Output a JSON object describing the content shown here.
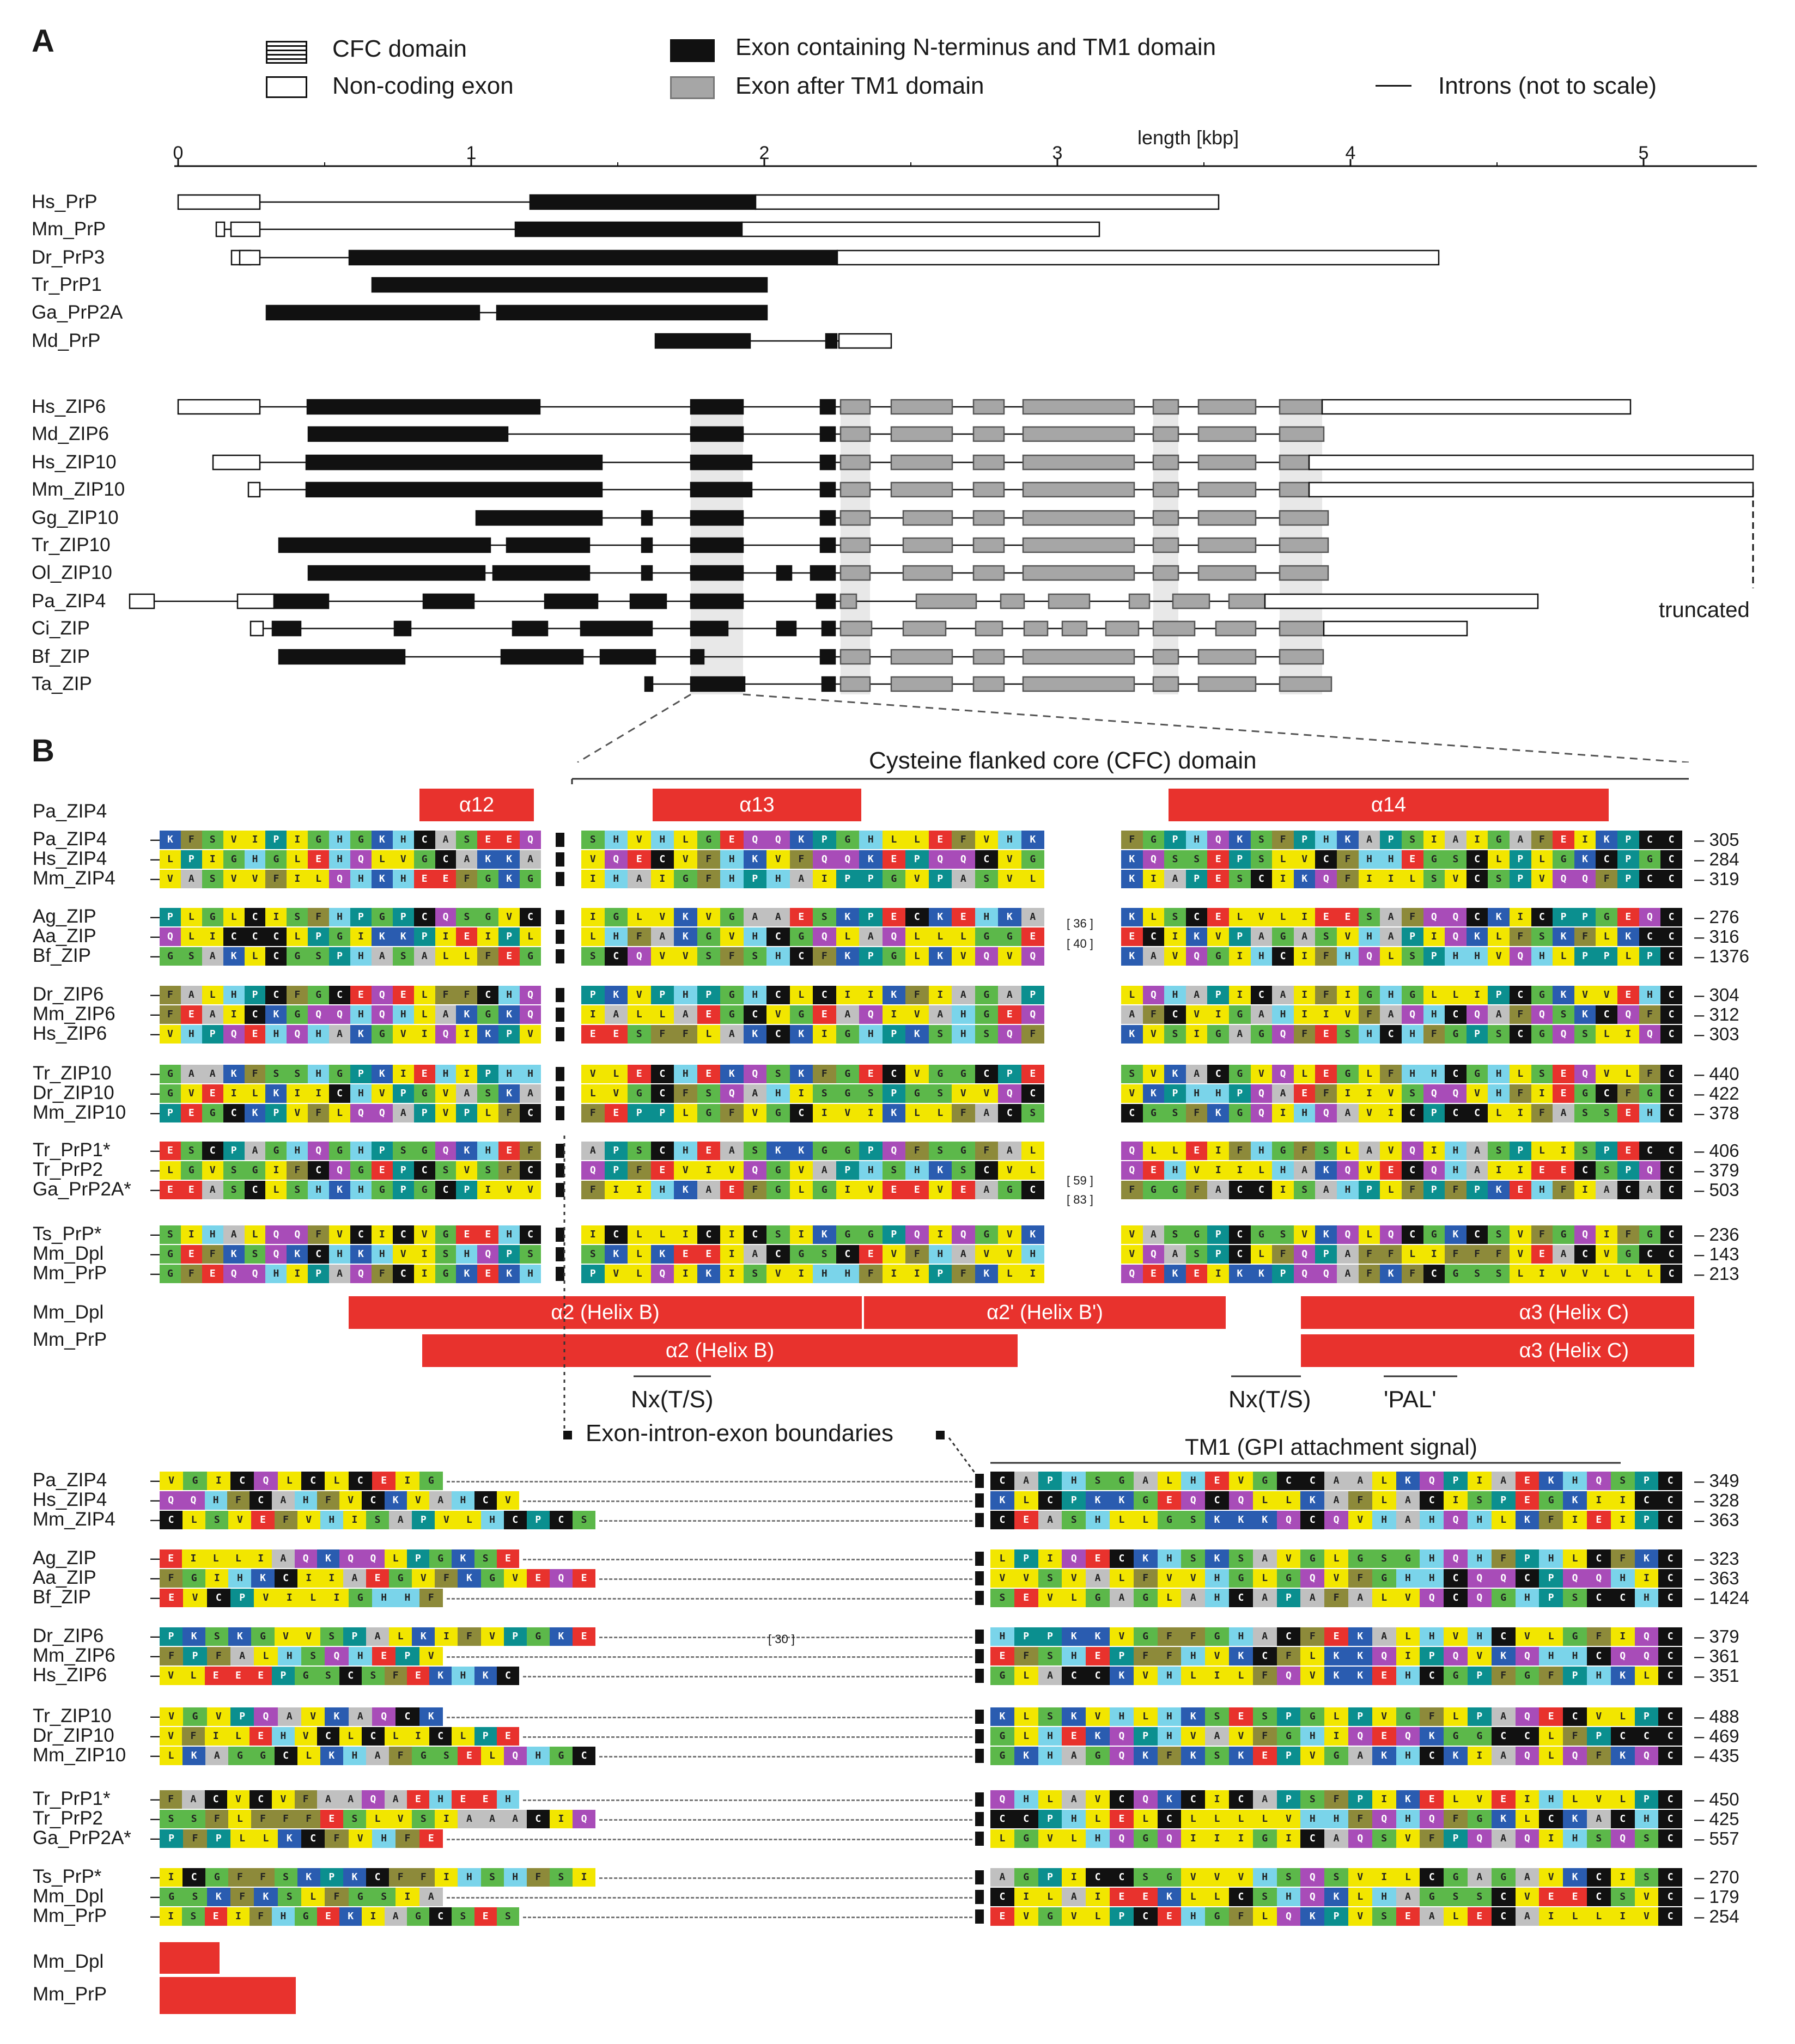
{
  "panelA": {
    "letter": "A",
    "legend": {
      "cfc": "CFC domain",
      "noncoding": "Non-coding exon",
      "exon_tm1": "Exon containing N-terminus and TM1 domain",
      "exon_after": "Exon after TM1 domain",
      "introns": "Introns (not to scale)"
    },
    "axis_label": "length [kbp]",
    "ticks": [
      "0",
      "1",
      "2",
      "3",
      "4",
      "5"
    ],
    "prp_species": [
      "Hs_PrP",
      "Mm_PrP",
      "Dr_PrP3",
      "Tr_PrP1",
      "Ga_PrP2A",
      "Md_PrP"
    ],
    "zip_species": [
      "Hs_ZIP6",
      "Md_ZIP6",
      "Hs_ZIP10",
      "Mm_ZIP10",
      "Gg_ZIP10",
      "Tr_ZIP10",
      "Ol_ZIP10",
      "Pa_ZIP4",
      "Ci_ZIP",
      "Bf_ZIP",
      "Ta_ZIP"
    ],
    "truncated": "truncated"
  },
  "panelB": {
    "letter": "B",
    "cfc_label": "Cysteine flanked core (CFC) domain",
    "helices_top": [
      "α12",
      "α13",
      "α14"
    ],
    "top_label": "Pa_ZIP4",
    "groups1": [
      [
        {
          "name": "Pa_ZIP4",
          "end": "305"
        },
        {
          "name": "Hs_ZIP4",
          "end": "284"
        },
        {
          "name": "Mm_ZIP4",
          "end": "319"
        }
      ],
      [
        {
          "name": "Ag_ZIP",
          "end": "276"
        },
        {
          "name": "Aa_ZIP",
          "end": "316"
        },
        {
          "name": "Bf_ZIP",
          "end": "1376"
        }
      ],
      [
        {
          "name": "Dr_ZIP6",
          "end": "304"
        },
        {
          "name": "Mm_ZIP6",
          "end": "312"
        },
        {
          "name": "Hs_ZIP6",
          "end": "303"
        }
      ],
      [
        {
          "name": "Tr_ZIP10",
          "end": "440"
        },
        {
          "name": "Dr_ZIP10",
          "end": "422"
        },
        {
          "name": "Mm_ZIP10",
          "end": "378"
        }
      ],
      [
        {
          "name": "Tr_PrP1*",
          "end": "406"
        },
        {
          "name": "Tr_PrP2",
          "end": "379"
        },
        {
          "name": "Ga_PrP2A*",
          "end": "503"
        }
      ],
      [
        {
          "name": "Ts_PrP*",
          "end": "236"
        },
        {
          "name": "Mm_Dpl",
          "end": "143"
        },
        {
          "name": "Mm_PrP",
          "end": "213"
        }
      ]
    ],
    "gap_counts1": [
      "[ 36 ]",
      "[ 40 ]",
      "[ 59 ]",
      "[ 83 ]"
    ],
    "helix_rows": [
      "Mm_Dpl",
      "Mm_PrP"
    ],
    "helices_bottom": {
      "dpl_a2": "α2 (Helix B)",
      "dpl_a2p": "α2' (Helix B')",
      "dpl_a3": "α3 (Helix C)",
      "prp_a2": "α2 (Helix B)",
      "prp_a3": "α3 (Helix C)"
    },
    "motif1": "Nx(T/S)",
    "motif2": "Nx(T/S)",
    "motif3": "'PAL'",
    "boundaries": "Exon-intron-exon boundaries",
    "tm1_label": "TM1 (GPI attachment signal)",
    "groups2": [
      [
        {
          "name": "Pa_ZIP4",
          "end": "349"
        },
        {
          "name": "Hs_ZIP4",
          "end": "328"
        },
        {
          "name": "Mm_ZIP4",
          "end": "363"
        }
      ],
      [
        {
          "name": "Ag_ZIP",
          "end": "323"
        },
        {
          "name": "Aa_ZIP",
          "end": "363"
        },
        {
          "name": "Bf_ZIP",
          "end": "1424"
        }
      ],
      [
        {
          "name": "Dr_ZIP6",
          "end": "379"
        },
        {
          "name": "Mm_ZIP6",
          "end": "361"
        },
        {
          "name": "Hs_ZIP6",
          "end": "351"
        }
      ],
      [
        {
          "name": "Tr_ZIP10",
          "end": "488"
        },
        {
          "name": "Dr_ZIP10",
          "end": "469"
        },
        {
          "name": "Mm_ZIP10",
          "end": "435"
        }
      ],
      [
        {
          "name": "Tr_PrP1*",
          "end": "450"
        },
        {
          "name": "Tr_PrP2",
          "end": "425"
        },
        {
          "name": "Ga_PrP2A*",
          "end": "557"
        }
      ],
      [
        {
          "name": "Ts_PrP*",
          "end": "270"
        },
        {
          "name": "Mm_Dpl",
          "end": "179"
        },
        {
          "name": "Mm_PrP",
          "end": "254"
        }
      ]
    ],
    "gap_count2": "[ 30 ]",
    "bottom_rows": [
      "Mm_Dpl",
      "Mm_PrP"
    ]
  },
  "colors": {
    "helix_red": "#e8322d",
    "exon_black": "#111111",
    "exon_gray": "#a6a6a6"
  }
}
